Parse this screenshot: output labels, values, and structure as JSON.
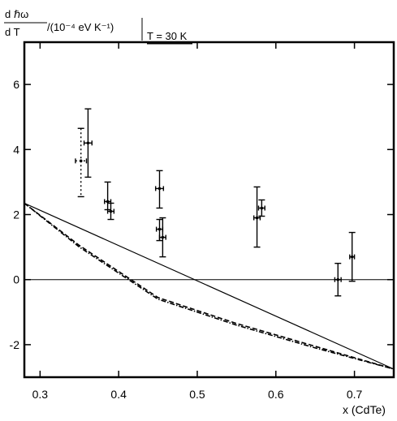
{
  "chart_data": {
    "type": "scatter",
    "title": "",
    "ylabel_parts": {
      "frac_num": "d ℏω",
      "frac_den": "d T",
      "units": " /(10⁻⁴ eV K⁻¹)",
      "condition": "T = 30 K"
    },
    "xlabel": "x (CdTe)",
    "xlim": [
      0.28,
      0.75
    ],
    "ylim": [
      -3,
      7.3
    ],
    "grid": false,
    "xticks": [
      0.3,
      0.4,
      0.5,
      0.6,
      0.7
    ],
    "xtick_labels": [
      "0.3",
      "0.4",
      "0.5",
      "0.6",
      "0.7"
    ],
    "yticks": [
      -2,
      0,
      2,
      4,
      6
    ],
    "ytick_labels": [
      "-2",
      "0",
      "2",
      "4",
      "6"
    ],
    "reference_line_y": 0,
    "points": [
      {
        "x": 0.352,
        "y": 3.65,
        "yerr_low": 1.1,
        "yerr_high": 1.0,
        "xerr": 0.007,
        "style": "dotted"
      },
      {
        "x": 0.361,
        "y": 4.2,
        "yerr_low": 1.05,
        "yerr_high": 1.05,
        "xerr": 0.005,
        "style": "solid"
      },
      {
        "x": 0.386,
        "y": 2.4,
        "yerr_low": 0.25,
        "yerr_high": 0.6,
        "xerr": 0.004,
        "style": "solid"
      },
      {
        "x": 0.39,
        "y": 2.1,
        "yerr_low": 0.25,
        "yerr_high": 0.25,
        "xerr": 0.004,
        "style": "solid"
      },
      {
        "x": 0.452,
        "y": 2.8,
        "yerr_low": 0.6,
        "yerr_high": 0.55,
        "xerr": 0.005,
        "style": "solid"
      },
      {
        "x": 0.452,
        "y": 1.55,
        "yerr_low": 0.35,
        "yerr_high": 0.3,
        "xerr": 0.004,
        "style": "solid"
      },
      {
        "x": 0.456,
        "y": 1.3,
        "yerr_low": 0.6,
        "yerr_high": 0.6,
        "xerr": 0.004,
        "style": "solid"
      },
      {
        "x": 0.576,
        "y": 1.9,
        "yerr_low": 0.9,
        "yerr_high": 0.95,
        "xerr": 0.004,
        "style": "solid"
      },
      {
        "x": 0.582,
        "y": 2.2,
        "yerr_low": 0.25,
        "yerr_high": 0.25,
        "xerr": 0.004,
        "style": "solid"
      },
      {
        "x": 0.679,
        "y": 0.0,
        "yerr_low": 0.5,
        "yerr_high": 0.5,
        "xerr": 0.004,
        "style": "solid"
      },
      {
        "x": 0.697,
        "y": 0.7,
        "yerr_low": 0.75,
        "yerr_high": 0.75,
        "xerr": 0.003,
        "style": "solid"
      }
    ],
    "curves": [
      {
        "style": "solid",
        "x": [
          0.28,
          0.75
        ],
        "y": [
          2.35,
          -2.75
        ]
      },
      {
        "style": "dashed",
        "x": [
          0.28,
          0.35,
          0.45,
          0.55,
          0.65,
          0.75
        ],
        "y": [
          2.35,
          1.05,
          -0.55,
          -1.35,
          -2.05,
          -2.75
        ]
      },
      {
        "style": "dash-dot",
        "x": [
          0.28,
          0.35,
          0.45,
          0.55,
          0.65,
          0.75
        ],
        "y": [
          2.35,
          1.0,
          -0.6,
          -1.4,
          -2.1,
          -2.75
        ]
      }
    ]
  }
}
